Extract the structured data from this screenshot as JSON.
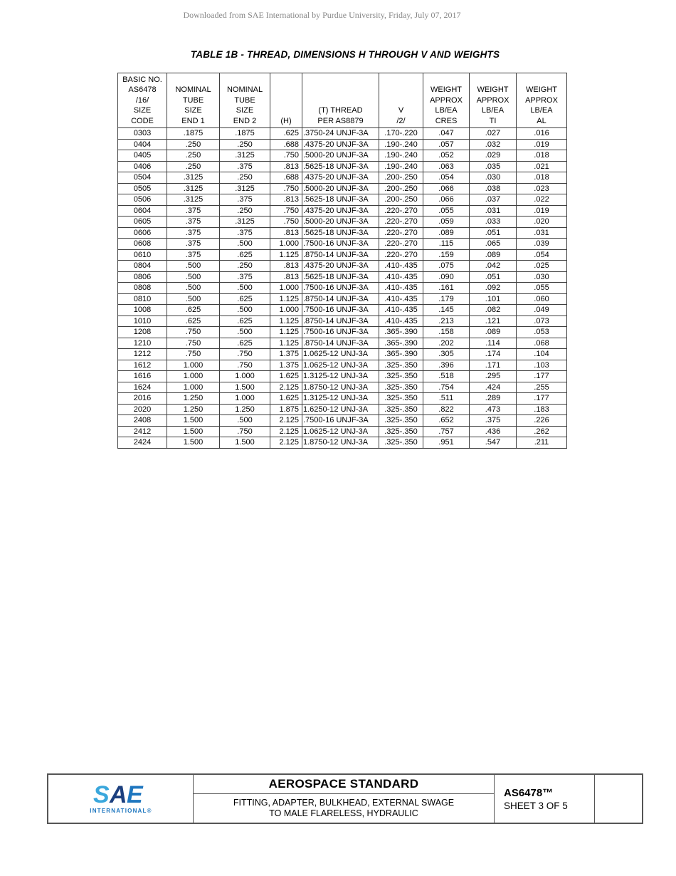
{
  "watermark": "Downloaded from SAE International by Purdue University, Friday, July 07, 2017",
  "title": "TABLE 1B - THREAD, DIMENSIONS H THROUGH V AND WEIGHTS",
  "table": {
    "headers": [
      "BASIC NO.\nAS6478\n/16/\nSIZE\nCODE",
      "NOMINAL\nTUBE\nSIZE\nEND 1",
      "NOMINAL\nTUBE\nSIZE\nEND 2",
      "(H)",
      "(T) THREAD\nPER AS8879",
      "V\n/2/",
      "WEIGHT\nAPPROX\nLB/EA\nCRES",
      "WEIGHT\nAPPROX\nLB/EA\nTI",
      "WEIGHT\nAPPROX\nLB/EA\nAL"
    ],
    "rows": [
      [
        "0303",
        ".1875",
        ".1875",
        ".625",
        ".3750-24 UNJF-3A",
        ".170-.220",
        ".047",
        ".027",
        ".016"
      ],
      [
        "0404",
        ".250",
        ".250",
        ".688",
        ".4375-20 UNJF-3A",
        ".190-.240",
        ".057",
        ".032",
        ".019"
      ],
      [
        "0405",
        ".250",
        ".3125",
        ".750",
        ".5000-20 UNJF-3A",
        ".190-.240",
        ".052",
        ".029",
        ".018"
      ],
      [
        "0406",
        ".250",
        ".375",
        ".813",
        ".5625-18 UNJF-3A",
        ".190-.240",
        ".063",
        ".035",
        ".021"
      ],
      [
        "0504",
        ".3125",
        ".250",
        ".688",
        ".4375-20 UNJF-3A",
        ".200-.250",
        ".054",
        ".030",
        ".018"
      ],
      [
        "0505",
        ".3125",
        ".3125",
        ".750",
        ".5000-20 UNJF-3A",
        ".200-.250",
        ".066",
        ".038",
        ".023"
      ],
      [
        "0506",
        ".3125",
        ".375",
        ".813",
        ".5625-18 UNJF-3A",
        ".200-.250",
        ".066",
        ".037",
        ".022"
      ],
      [
        "0604",
        ".375",
        ".250",
        ".750",
        ".4375-20 UNJF-3A",
        ".220-.270",
        ".055",
        ".031",
        ".019"
      ],
      [
        "0605",
        ".375",
        ".3125",
        ".750",
        ".5000-20 UNJF-3A",
        ".220-.270",
        ".059",
        ".033",
        ".020"
      ],
      [
        "0606",
        ".375",
        ".375",
        ".813",
        ".5625-18 UNJF-3A",
        ".220-.270",
        ".089",
        ".051",
        ".031"
      ],
      [
        "0608",
        ".375",
        ".500",
        "1.000",
        ".7500-16 UNJF-3A",
        ".220-.270",
        ".115",
        ".065",
        ".039"
      ],
      [
        "0610",
        ".375",
        ".625",
        "1.125",
        ".8750-14 UNJF-3A",
        ".220-.270",
        ".159",
        ".089",
        ".054"
      ],
      [
        "0804",
        ".500",
        ".250",
        ".813",
        ".4375-20 UNJF-3A",
        ".410-.435",
        ".075",
        ".042",
        ".025"
      ],
      [
        "0806",
        ".500",
        ".375",
        ".813",
        ".5625-18 UNJF-3A",
        ".410-.435",
        ".090",
        ".051",
        ".030"
      ],
      [
        "0808",
        ".500",
        ".500",
        "1.000",
        ".7500-16 UNJF-3A",
        ".410-.435",
        ".161",
        ".092",
        ".055"
      ],
      [
        "0810",
        ".500",
        ".625",
        "1.125",
        ".8750-14 UNJF-3A",
        ".410-.435",
        ".179",
        ".101",
        ".060"
      ],
      [
        "1008",
        ".625",
        ".500",
        "1.000",
        ".7500-16 UNJF-3A",
        ".410-.435",
        ".145",
        ".082",
        ".049"
      ],
      [
        "1010",
        ".625",
        ".625",
        "1.125",
        ".8750-14 UNJF-3A",
        ".410-.435",
        ".213",
        ".121",
        ".073"
      ],
      [
        "1208",
        ".750",
        ".500",
        "1.125",
        ".7500-16 UNJF-3A",
        ".365-.390",
        ".158",
        ".089",
        ".053"
      ],
      [
        "1210",
        ".750",
        ".625",
        "1.125",
        ".8750-14 UNJF-3A",
        ".365-.390",
        ".202",
        ".114",
        ".068"
      ],
      [
        "1212",
        ".750",
        ".750",
        "1.375",
        "1.0625-12 UNJ-3A",
        ".365-.390",
        ".305",
        ".174",
        ".104"
      ],
      [
        "1612",
        "1.000",
        ".750",
        "1.375",
        "1.0625-12 UNJ-3A",
        ".325-.350",
        ".396",
        ".171",
        ".103"
      ],
      [
        "1616",
        "1.000",
        "1.000",
        "1.625",
        "1.3125-12 UNJ-3A",
        ".325-.350",
        ".518",
        ".295",
        ".177"
      ],
      [
        "1624",
        "1.000",
        "1.500",
        "2.125",
        "1.8750-12 UNJ-3A",
        ".325-.350",
        ".754",
        ".424",
        ".255"
      ],
      [
        "2016",
        "1.250",
        "1.000",
        "1.625",
        "1.3125-12 UNJ-3A",
        ".325-.350",
        ".511",
        ".289",
        ".177"
      ],
      [
        "2020",
        "1.250",
        "1.250",
        "1.875",
        "1.6250-12 UNJ-3A",
        ".325-.350",
        ".822",
        ".473",
        ".183"
      ],
      [
        "2408",
        "1.500",
        ".500",
        "2.125",
        ".7500-16 UNJF-3A",
        ".325-.350",
        ".652",
        ".375",
        ".226"
      ],
      [
        "2412",
        "1.500",
        ".750",
        "2.125",
        "1.0625-12 UNJ-3A",
        ".325-.350",
        ".757",
        ".436",
        ".262"
      ],
      [
        "2424",
        "1.500",
        "1.500",
        "2.125",
        "1.8750-12 UNJ-3A",
        ".325-.350",
        ".951",
        ".547",
        ".211"
      ]
    ]
  },
  "footer": {
    "logo": {
      "letter_s": "S",
      "letter_a": "A",
      "letter_e": "E",
      "subtitle": "INTERNATIONAL®"
    },
    "doc_type": "AEROSPACE STANDARD",
    "doc_title_line1": "FITTING, ADAPTER, BULKHEAD, EXTERNAL SWAGE",
    "doc_title_line2": "TO MALE FLARELESS, HYDRAULIC",
    "doc_number": "AS6478™",
    "sheet": "SHEET 3 OF 5"
  },
  "colors": {
    "logo_s": "#3aa7dc",
    "logo_a": "#1b3f7e",
    "logo_e": "#1d76bf",
    "logo_subtitle": "#1d76bf",
    "border": "#3f3f3f",
    "watermark_text": "#878787"
  }
}
